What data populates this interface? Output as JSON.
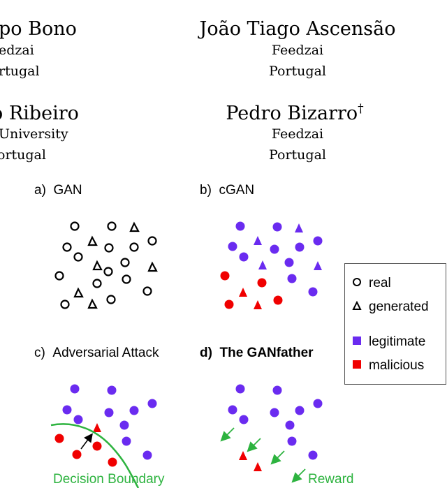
{
  "authors": [
    {
      "name": "Bo Bono",
      "name_display": "po Bono",
      "affiliation": "Feedzai",
      "affiliation_display": "edzai",
      "country": "Portugal",
      "country_display": "rtugal"
    },
    {
      "name": "João Tiago Ascensão",
      "affiliation": "Feedzai",
      "country": "Portugal"
    },
    {
      "name_display": "o Ribeiro",
      "affiliation_display": "University",
      "country_display": "ortugal"
    },
    {
      "name": "Pedro Bizarro",
      "mark": "†",
      "affiliation": "Feedzai",
      "country": "Portugal"
    }
  ],
  "panels": {
    "a": {
      "tag": "a)",
      "title": "GAN"
    },
    "b": {
      "tag": "b)",
      "title": "cGAN"
    },
    "c": {
      "tag": "c)",
      "title": "Adversarial Attack"
    },
    "d": {
      "tag": "d)",
      "title": "The GANfather"
    }
  },
  "legend": {
    "real": "real",
    "generated": "generated",
    "legitimate": "legitimate",
    "malicious": "malicious"
  },
  "annotations": {
    "decision_boundary": "Decision Boundary",
    "reward": "Reward"
  },
  "colors": {
    "legitimate": "#6a2bf0",
    "malicious": "#f00000",
    "boundary": "#2db33f",
    "outline": "#000000"
  }
}
